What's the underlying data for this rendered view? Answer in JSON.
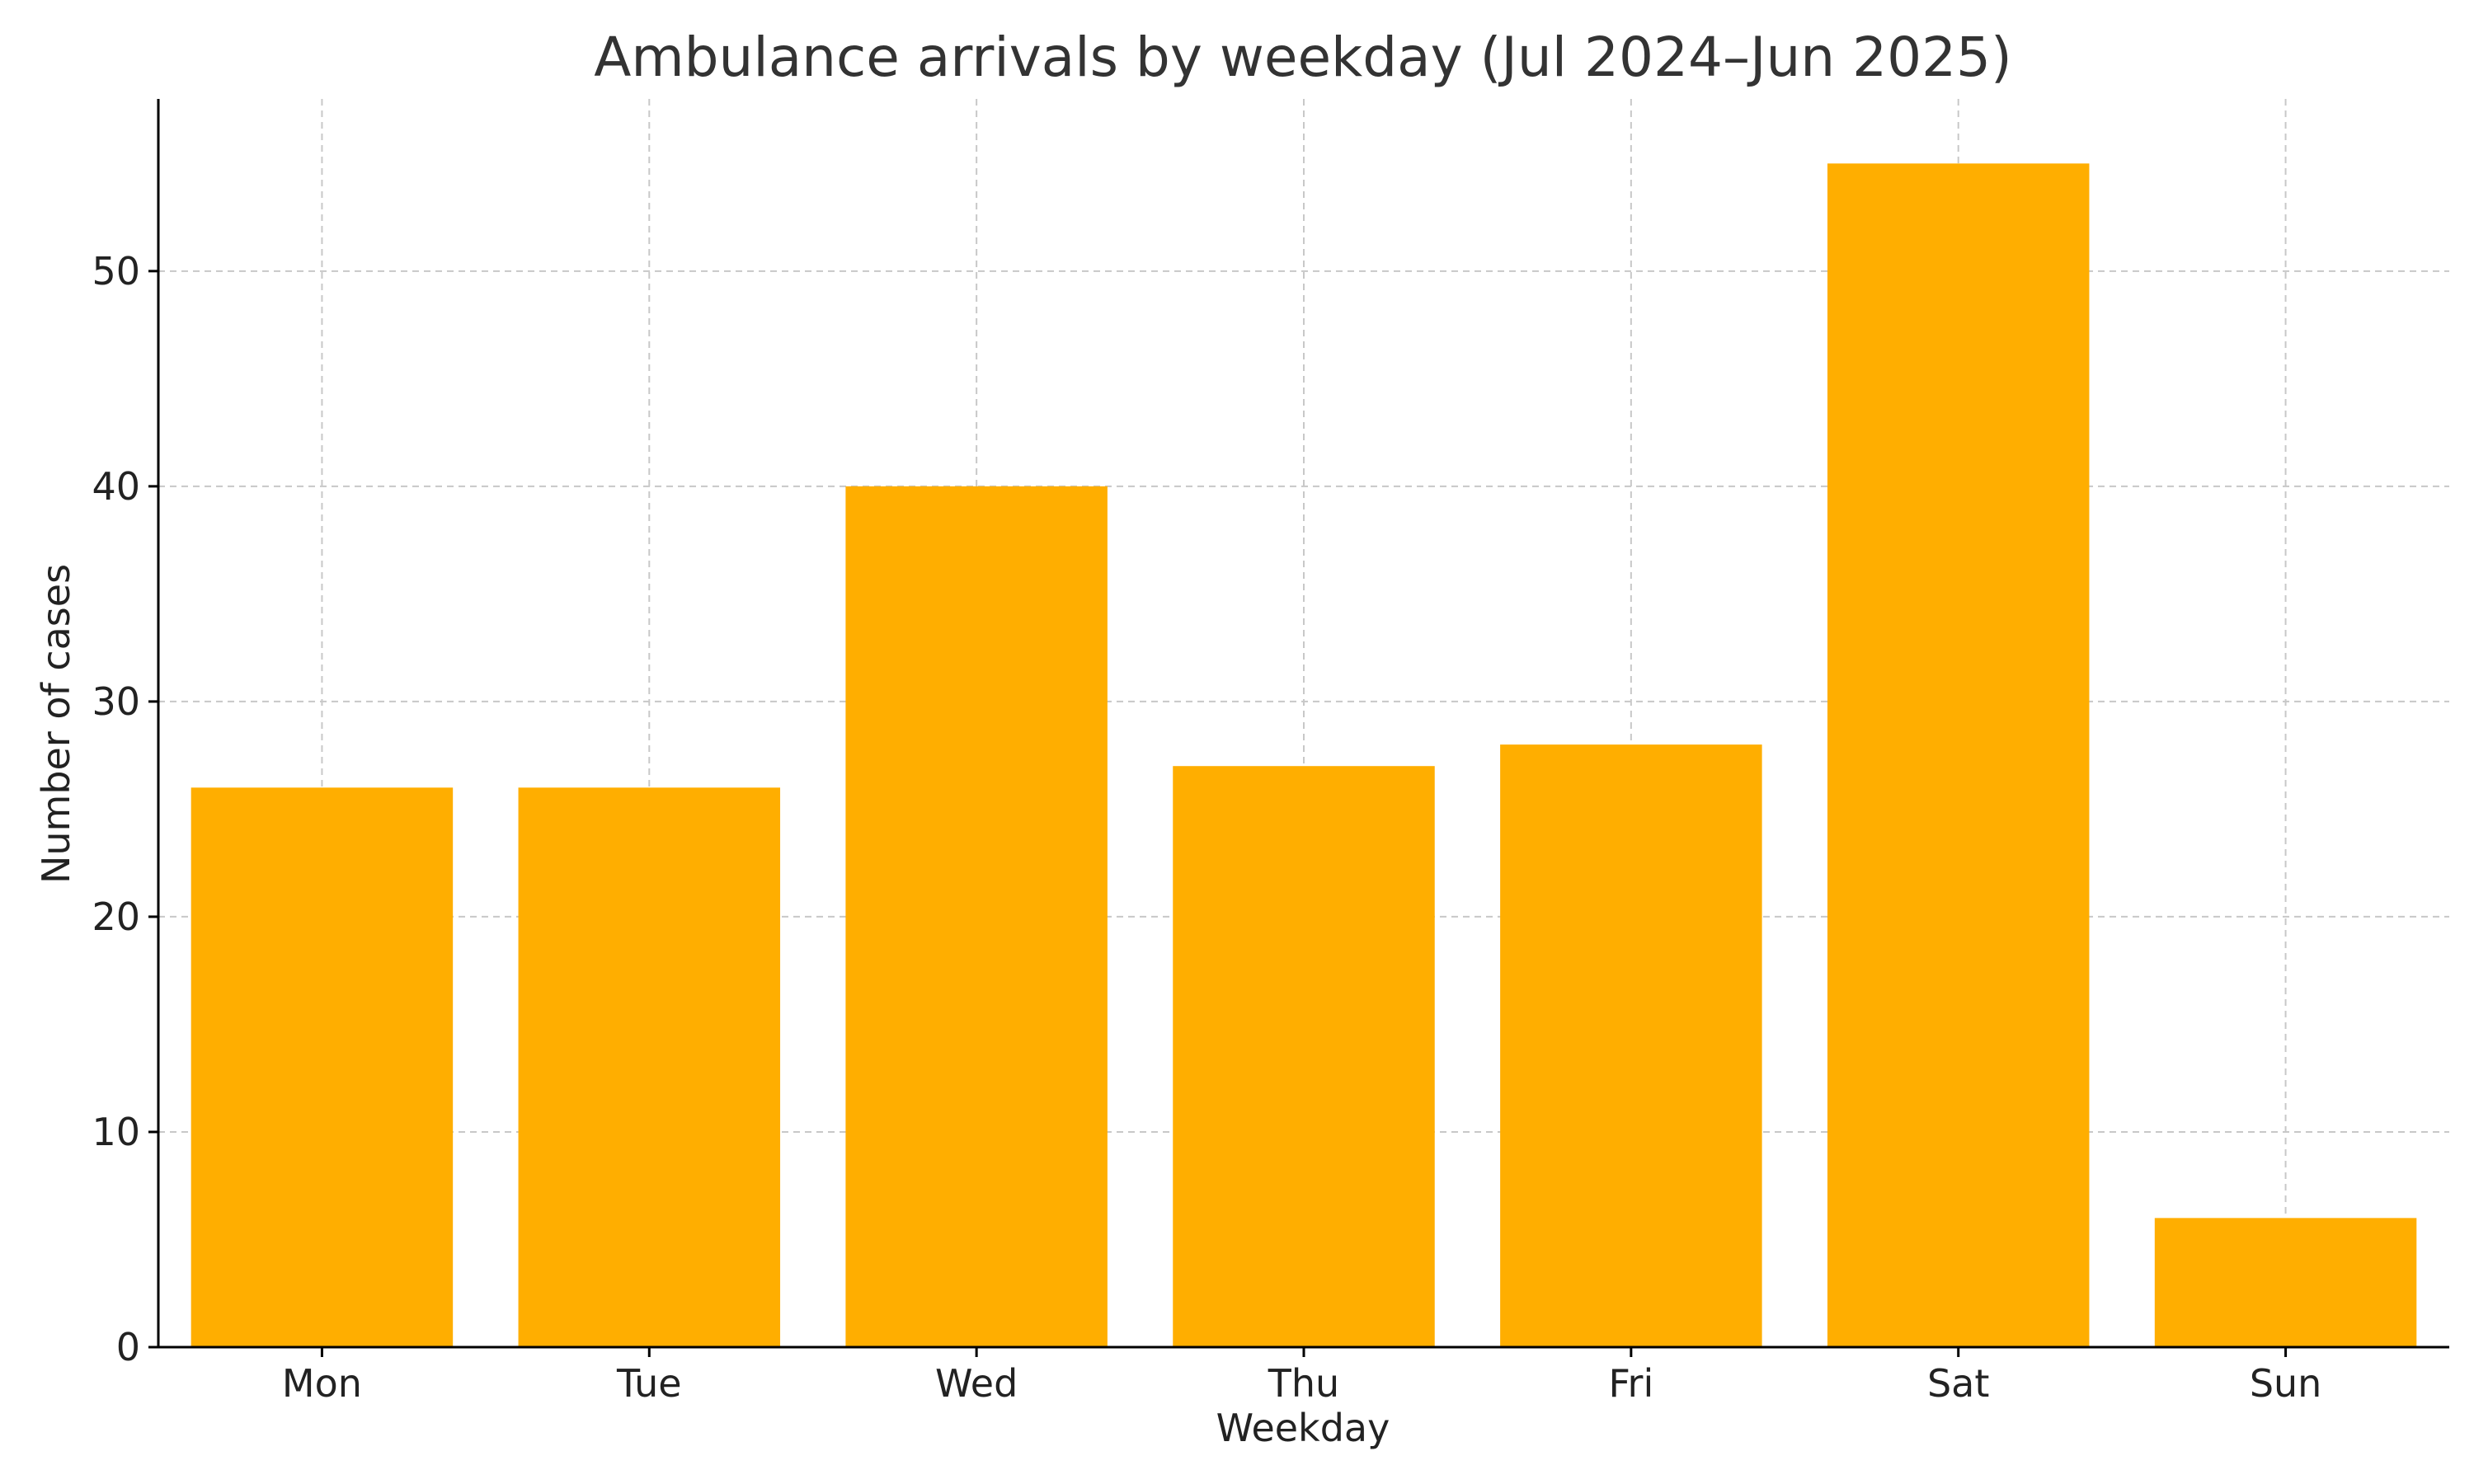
{
  "chart_data": {
    "type": "bar",
    "title": "Ambulance arrivals by weekday (Jul 2024–Jun 2025)",
    "xlabel": "Weekday",
    "ylabel": "Number of cases",
    "categories": [
      "Mon",
      "Tue",
      "Wed",
      "Thu",
      "Fri",
      "Sat",
      "Sun"
    ],
    "values": [
      26,
      26,
      40,
      27,
      28,
      55,
      6
    ],
    "ylim": [
      0,
      58
    ],
    "yticks": [
      0,
      10,
      20,
      30,
      40,
      50
    ],
    "grid": true,
    "bar_color": "#FFAE00"
  }
}
